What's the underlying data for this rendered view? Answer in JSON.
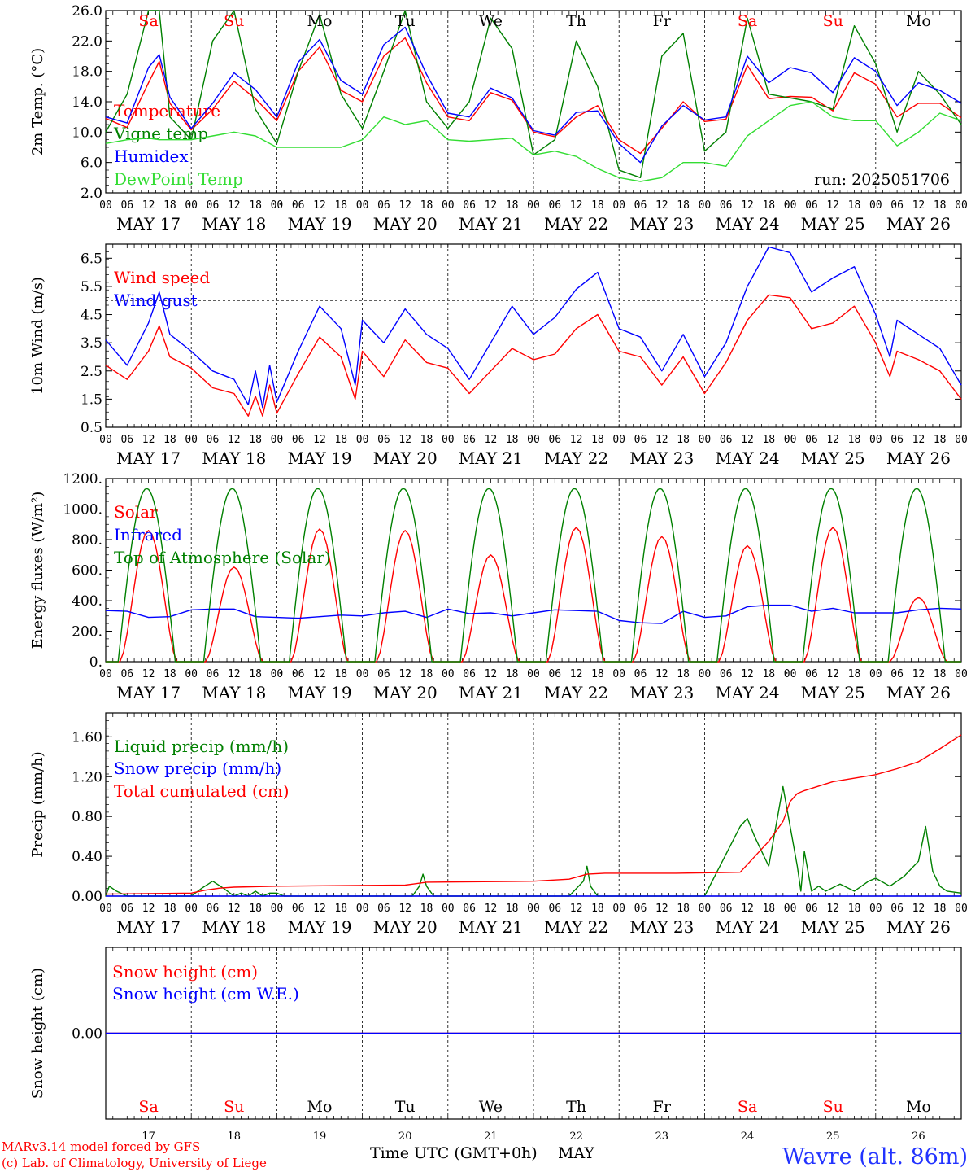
{
  "colors": {
    "red": "#ff0000",
    "green": "#008000",
    "blue": "#0000ff",
    "light_green": "#33dd33",
    "axis": "#000000",
    "footer_blue": "#2233ff"
  },
  "run_label": "run: 2025051706",
  "footer": {
    "model_line": "MARv3.14 model forced by GFS",
    "credit_line": "(c) Lab. of Climatology, University of Liege",
    "time_axis": "Time UTC (GMT+0h)",
    "month": "MAY",
    "station": "Wavre (alt. 86m)"
  },
  "days": {
    "weekdays": [
      "Sa",
      "Su",
      "Mo",
      "Tu",
      "We",
      "Th",
      "Fr",
      "Sa",
      "Su",
      "Mo"
    ],
    "weekday_colors": [
      "#ff0000",
      "#ff0000",
      "#000000",
      "#000000",
      "#000000",
      "#000000",
      "#000000",
      "#ff0000",
      "#ff0000",
      "#000000"
    ],
    "dates": [
      "MAY 17",
      "MAY 18",
      "MAY 19",
      "MAY 20",
      "MAY 21",
      "MAY 22",
      "MAY 23",
      "MAY 24",
      "MAY 25",
      "MAY 26"
    ],
    "day_numbers": [
      "17",
      "18",
      "19",
      "20",
      "21",
      "22",
      "23",
      "24",
      "25",
      "26"
    ],
    "hour_labels": [
      "00",
      "06",
      "12",
      "18"
    ],
    "end_hour_label": "00"
  },
  "chart_data": [
    {
      "id": "temperature",
      "type": "line",
      "ylabel": "2m Temp. (°C)",
      "ylim": [
        2.0,
        26.0
      ],
      "yticks": [
        "2.0",
        "6.0",
        "10.0",
        "14.0",
        "18.0",
        "22.0",
        "26.0"
      ],
      "x_unit": "hours since May 17 00 UTC",
      "xlim": [
        0,
        240
      ],
      "series": [
        {
          "name": "Temperature",
          "color": "#ff0000",
          "x": [
            0,
            6,
            12,
            15,
            18,
            24,
            30,
            36,
            42,
            48,
            54,
            60,
            66,
            72,
            78,
            84,
            90,
            96,
            102,
            108,
            114,
            120,
            126,
            132,
            138,
            144,
            150,
            156,
            162,
            168,
            174,
            180,
            186,
            192,
            198,
            204,
            210,
            216,
            222,
            228,
            234,
            240
          ],
          "y": [
            11.8,
            10.6,
            16.5,
            19.3,
            13.8,
            10.3,
            13,
            16.7,
            14.4,
            11.5,
            18,
            21.2,
            15.5,
            14,
            20,
            22.4,
            16.5,
            12,
            11.5,
            15.2,
            14.2,
            10,
            9.4,
            12,
            13.5,
            9,
            7.2,
            10.5,
            14,
            11.4,
            11.7,
            18.8,
            14.4,
            14.7,
            14.6,
            12.8,
            17.8,
            16.3,
            12,
            13.8,
            13.8,
            11.9
          ]
        },
        {
          "name": "Vigne temp",
          "color": "#008000",
          "x": [
            0,
            6,
            12,
            15,
            18,
            24,
            30,
            36,
            42,
            48,
            54,
            60,
            66,
            72,
            78,
            84,
            90,
            96,
            102,
            108,
            114,
            120,
            126,
            132,
            138,
            144,
            150,
            156,
            162,
            168,
            174,
            180,
            186,
            192,
            198,
            204,
            210,
            216,
            222,
            228,
            234,
            240
          ],
          "y": [
            10,
            15,
            26,
            26,
            12,
            9,
            22,
            26,
            13,
            8.5,
            18,
            25.5,
            15,
            10.5,
            18,
            26,
            14,
            10.5,
            14,
            25,
            21,
            7,
            9,
            22,
            16,
            5,
            4,
            20,
            23,
            7.5,
            10,
            25,
            15,
            14.5,
            14,
            13,
            24,
            19,
            10,
            18,
            15,
            11
          ]
        },
        {
          "name": "Humidex",
          "color": "#0000ff",
          "x": [
            0,
            6,
            12,
            15,
            18,
            24,
            30,
            36,
            42,
            48,
            54,
            60,
            66,
            72,
            78,
            84,
            90,
            96,
            102,
            108,
            114,
            120,
            126,
            132,
            138,
            144,
            150,
            156,
            162,
            168,
            174,
            180,
            186,
            192,
            198,
            204,
            210,
            216,
            222,
            228,
            234,
            240
          ],
          "y": [
            12,
            11.2,
            18.5,
            20.2,
            14.6,
            10.5,
            13.8,
            17.8,
            15.6,
            12,
            19.2,
            22.2,
            16.8,
            15,
            21.5,
            23.8,
            17.6,
            12.5,
            12,
            15.8,
            14.5,
            10.2,
            9.6,
            12.6,
            12.8,
            8.5,
            6,
            10.8,
            13.5,
            11.6,
            12,
            20,
            16.5,
            18.5,
            17.8,
            15.2,
            19.8,
            18,
            13.5,
            16.5,
            15.5,
            13.8
          ]
        },
        {
          "name": "DewPoint Temp",
          "color": "#33dd33",
          "x": [
            0,
            6,
            12,
            15,
            18,
            24,
            30,
            36,
            42,
            48,
            54,
            60,
            66,
            72,
            78,
            84,
            90,
            96,
            102,
            108,
            114,
            120,
            126,
            132,
            138,
            144,
            150,
            156,
            162,
            168,
            174,
            180,
            186,
            192,
            198,
            204,
            210,
            216,
            222,
            228,
            234,
            240
          ],
          "y": [
            8.5,
            9,
            9.2,
            9,
            9,
            9,
            9.5,
            10,
            9.5,
            8,
            8,
            8,
            8,
            9,
            12,
            11,
            11.5,
            9,
            8.8,
            9,
            9.2,
            7,
            7.5,
            6.8,
            5.2,
            4,
            3.5,
            4,
            6,
            6,
            5.5,
            9.5,
            11.5,
            13.5,
            14,
            12,
            11.5,
            11.5,
            8.2,
            10,
            12.5,
            11.5
          ]
        }
      ]
    },
    {
      "id": "wind",
      "type": "line",
      "ylabel": "10m Wind (m/s)",
      "ylim": [
        0.5,
        7.0
      ],
      "yticks": [
        "0.5",
        "1.5",
        "2.5",
        "3.5",
        "4.5",
        "5.5",
        "6.5"
      ],
      "reference_line": 5.0,
      "xlim": [
        0,
        240
      ],
      "series": [
        {
          "name": "Wind speed",
          "color": "#ff0000",
          "x": [
            0,
            6,
            12,
            15,
            18,
            24,
            30,
            36,
            40,
            42,
            44,
            46,
            48,
            54,
            60,
            66,
            70,
            72,
            78,
            84,
            90,
            96,
            102,
            108,
            114,
            120,
            126,
            132,
            138,
            144,
            150,
            156,
            162,
            168,
            174,
            180,
            186,
            192,
            198,
            204,
            210,
            216,
            220,
            222,
            228,
            234,
            240
          ],
          "y": [
            2.7,
            2.2,
            3.2,
            4.1,
            3.0,
            2.6,
            1.9,
            1.7,
            0.9,
            1.6,
            0.9,
            2.0,
            1.0,
            2.4,
            3.7,
            3.0,
            1.5,
            3.2,
            2.3,
            3.6,
            2.8,
            2.6,
            1.7,
            2.5,
            3.3,
            2.9,
            3.1,
            4.0,
            4.5,
            3.2,
            3.0,
            2.0,
            3.0,
            1.7,
            2.8,
            4.3,
            5.2,
            5.1,
            4.0,
            4.2,
            4.8,
            3.5,
            2.3,
            3.2,
            2.9,
            2.5,
            1.5
          ]
        },
        {
          "name": "Wind gust",
          "color": "#0000ff",
          "x": [
            0,
            6,
            12,
            15,
            18,
            24,
            30,
            36,
            40,
            42,
            44,
            46,
            48,
            54,
            60,
            66,
            70,
            72,
            78,
            84,
            90,
            96,
            102,
            108,
            114,
            120,
            126,
            132,
            138,
            144,
            150,
            156,
            162,
            168,
            174,
            180,
            186,
            192,
            198,
            204,
            210,
            216,
            220,
            222,
            228,
            234,
            240
          ],
          "y": [
            3.6,
            2.7,
            4.2,
            5.3,
            3.8,
            3.2,
            2.5,
            2.2,
            1.3,
            2.5,
            1.2,
            2.7,
            1.4,
            3.2,
            4.8,
            4.0,
            2.0,
            4.3,
            3.5,
            4.7,
            3.8,
            3.3,
            2.2,
            3.5,
            4.8,
            3.8,
            4.4,
            5.4,
            6.0,
            4.0,
            3.7,
            2.5,
            3.8,
            2.3,
            3.5,
            5.5,
            6.9,
            6.7,
            5.3,
            5.8,
            6.2,
            4.5,
            3.0,
            4.3,
            3.8,
            3.3,
            2.0
          ]
        }
      ]
    },
    {
      "id": "energy",
      "type": "line",
      "ylabel": "Energy fluxes (W/m²)",
      "ylim": [
        0,
        1200
      ],
      "yticks": [
        "0.",
        "200.",
        "400.",
        "600.",
        "800.",
        "1000.",
        "1200."
      ],
      "xlim": [
        0,
        240
      ],
      "series": [
        {
          "name": "Solar",
          "color": "#ff0000",
          "daily_peaks": [
            860,
            620,
            870,
            860,
            700,
            880,
            820,
            760,
            880,
            420
          ],
          "sunrise_hour": 4,
          "sunset_hour": 20
        },
        {
          "name": "Infrared",
          "color": "#0000ff",
          "x": [
            0,
            6,
            12,
            18,
            24,
            30,
            36,
            42,
            48,
            54,
            60,
            66,
            72,
            78,
            84,
            90,
            96,
            102,
            108,
            114,
            120,
            126,
            132,
            138,
            144,
            150,
            156,
            162,
            168,
            174,
            180,
            186,
            192,
            198,
            204,
            210,
            216,
            222,
            228,
            234,
            240
          ],
          "y": [
            335,
            330,
            290,
            295,
            340,
            345,
            345,
            295,
            290,
            285,
            295,
            305,
            300,
            320,
            330,
            290,
            345,
            315,
            320,
            300,
            320,
            340,
            335,
            330,
            270,
            255,
            250,
            330,
            290,
            300,
            360,
            370,
            370,
            330,
            350,
            320,
            320,
            320,
            340,
            350,
            345
          ]
        },
        {
          "name": "Top of Atmosphere (Solar)",
          "color": "#008000",
          "daily_peak": 1135,
          "sunrise_hour": 3.5,
          "sunset_hour": 19.5
        }
      ]
    },
    {
      "id": "precip",
      "type": "line",
      "ylabel": "Precip (mm/h)",
      "ylim": [
        0,
        1.84
      ],
      "yticks": [
        "0.00",
        "0.40",
        "0.80",
        "1.20",
        "1.60"
      ],
      "xlim": [
        0,
        240
      ],
      "series": [
        {
          "name": "Liquid precip (mm/h)",
          "color": "#008000",
          "x": [
            0,
            1,
            3,
            6,
            24,
            27,
            30,
            33,
            36,
            38,
            40,
            42,
            44,
            46,
            48,
            50,
            86,
            88,
            89,
            90,
            92,
            120,
            130,
            134,
            135,
            136,
            138,
            140,
            156,
            162,
            168,
            178,
            180,
            182,
            186,
            190,
            194,
            195,
            196,
            198,
            200,
            202,
            206,
            210,
            214,
            216,
            220,
            224,
            228,
            230,
            232,
            234,
            236,
            240
          ],
          "y": [
            0,
            0.1,
            0.05,
            0,
            0,
            0.08,
            0.15,
            0.08,
            0,
            0.03,
            0,
            0.05,
            0,
            0.03,
            0.03,
            0,
            0,
            0.1,
            0.22,
            0.1,
            0,
            0,
            0,
            0.15,
            0.3,
            0.1,
            0,
            0,
            0,
            0,
            0,
            0.7,
            0.78,
            0.6,
            0.3,
            1.1,
            0.3,
            0.05,
            0.45,
            0.05,
            0.1,
            0.05,
            0.12,
            0.05,
            0.15,
            0.18,
            0.1,
            0.2,
            0.35,
            0.7,
            0.25,
            0.1,
            0.05,
            0.03
          ]
        },
        {
          "name": "Snow precip (mm/h)",
          "color": "#0000ff",
          "x": [
            0,
            240
          ],
          "y": [
            0,
            0
          ]
        },
        {
          "name": "Total cumulated (cm)",
          "color": "#ff0000",
          "x": [
            0,
            24,
            28,
            32,
            36,
            48,
            84,
            90,
            120,
            130,
            135,
            140,
            160,
            178,
            186,
            190,
            192,
            194,
            196,
            204,
            216,
            222,
            228,
            234,
            240
          ],
          "y": [
            0.02,
            0.03,
            0.06,
            0.08,
            0.09,
            0.1,
            0.11,
            0.14,
            0.15,
            0.17,
            0.22,
            0.23,
            0.23,
            0.24,
            0.55,
            0.75,
            0.95,
            1.03,
            1.06,
            1.15,
            1.22,
            1.28,
            1.35,
            1.48,
            1.62
          ]
        }
      ]
    },
    {
      "id": "snow",
      "type": "line",
      "ylabel": "Snow height (cm)",
      "ylim": [
        -1,
        1
      ],
      "yticks": [
        "0.00"
      ],
      "xlim": [
        0,
        240
      ],
      "series": [
        {
          "name": "Snow height (cm)",
          "color": "#ff0000",
          "x": [
            0,
            240
          ],
          "y": [
            0,
            0
          ]
        },
        {
          "name": "Snow height (cm W.E.)",
          "color": "#0000ff",
          "x": [
            0,
            240
          ],
          "y": [
            0,
            0
          ]
        }
      ]
    }
  ]
}
